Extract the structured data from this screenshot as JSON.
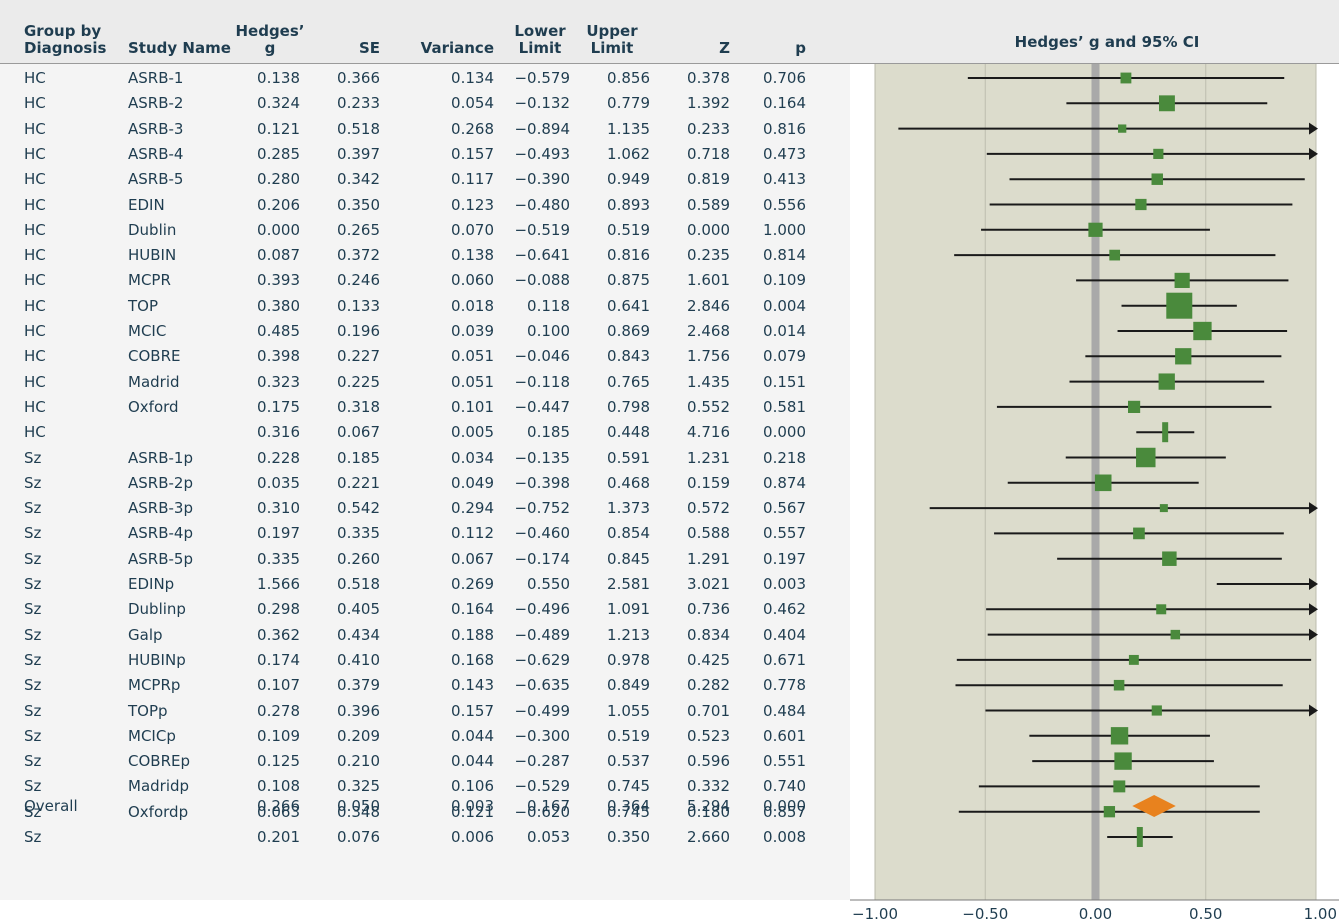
{
  "headers": {
    "group": [
      "Group by",
      "Diagnosis"
    ],
    "study": [
      "Study Name"
    ],
    "g": [
      "Hedges’",
      "g"
    ],
    "se": [
      "SE"
    ],
    "variance": [
      "Variance"
    ],
    "lower": [
      "Lower",
      "Limit"
    ],
    "upper": [
      "Upper",
      "Limit"
    ],
    "z": [
      "Z"
    ],
    "p": [
      "p"
    ]
  },
  "plot_title": "Hedges’ g and 95% CI",
  "rows": [
    {
      "group": "HC",
      "study": "ASRB-1",
      "g": "0.138",
      "se": "0.366",
      "variance": "0.134",
      "lower": "−0.579",
      "upper": "0.856",
      "z": "0.378",
      "p": "0.706"
    },
    {
      "group": "HC",
      "study": "ASRB-2",
      "g": "0.324",
      "se": "0.233",
      "variance": "0.054",
      "lower": "−0.132",
      "upper": "0.779",
      "z": "1.392",
      "p": "0.164"
    },
    {
      "group": "HC",
      "study": "ASRB-3",
      "g": "0.121",
      "se": "0.518",
      "variance": "0.268",
      "lower": "−0.894",
      "upper": "1.135",
      "z": "0.233",
      "p": "0.816"
    },
    {
      "group": "HC",
      "study": "ASRB-4",
      "g": "0.285",
      "se": "0.397",
      "variance": "0.157",
      "lower": "−0.493",
      "upper": "1.062",
      "z": "0.718",
      "p": "0.473"
    },
    {
      "group": "HC",
      "study": "ASRB-5",
      "g": "0.280",
      "se": "0.342",
      "variance": "0.117",
      "lower": "−0.390",
      "upper": "0.949",
      "z": "0.819",
      "p": "0.413"
    },
    {
      "group": "HC",
      "study": "EDIN",
      "g": "0.206",
      "se": "0.350",
      "variance": "0.123",
      "lower": "−0.480",
      "upper": "0.893",
      "z": "0.589",
      "p": "0.556"
    },
    {
      "group": "HC",
      "study": "Dublin",
      "g": "0.000",
      "se": "0.265",
      "variance": "0.070",
      "lower": "−0.519",
      "upper": "0.519",
      "z": "0.000",
      "p": "1.000"
    },
    {
      "group": "HC",
      "study": "HUBIN",
      "g": "0.087",
      "se": "0.372",
      "variance": "0.138",
      "lower": "−0.641",
      "upper": "0.816",
      "z": "0.235",
      "p": "0.814"
    },
    {
      "group": "HC",
      "study": "MCPR",
      "g": "0.393",
      "se": "0.246",
      "variance": "0.060",
      "lower": "−0.088",
      "upper": "0.875",
      "z": "1.601",
      "p": "0.109"
    },
    {
      "group": "HC",
      "study": "TOP",
      "g": "0.380",
      "se": "0.133",
      "variance": "0.018",
      "lower": "0.118",
      "upper": "0.641",
      "z": "2.846",
      "p": "0.004"
    },
    {
      "group": "HC",
      "study": "MCIC",
      "g": "0.485",
      "se": "0.196",
      "variance": "0.039",
      "lower": "0.100",
      "upper": "0.869",
      "z": "2.468",
      "p": "0.014"
    },
    {
      "group": "HC",
      "study": "COBRE",
      "g": "0.398",
      "se": "0.227",
      "variance": "0.051",
      "lower": "−0.046",
      "upper": "0.843",
      "z": "1.756",
      "p": "0.079"
    },
    {
      "group": "HC",
      "study": "Madrid",
      "g": "0.323",
      "se": "0.225",
      "variance": "0.051",
      "lower": "−0.118",
      "upper": "0.765",
      "z": "1.435",
      "p": "0.151"
    },
    {
      "group": "HC",
      "study": "Oxford",
      "g": "0.175",
      "se": "0.318",
      "variance": "0.101",
      "lower": "−0.447",
      "upper": "0.798",
      "z": "0.552",
      "p": "0.581"
    },
    {
      "group": "HC",
      "study": "",
      "g": "0.316",
      "se": "0.067",
      "variance": "0.005",
      "lower": "0.185",
      "upper": "0.448",
      "z": "4.716",
      "p": "0.000"
    },
    {
      "group": "Sz",
      "study": "ASRB-1p",
      "g": "0.228",
      "se": "0.185",
      "variance": "0.034",
      "lower": "−0.135",
      "upper": "0.591",
      "z": "1.231",
      "p": "0.218"
    },
    {
      "group": "Sz",
      "study": "ASRB-2p",
      "g": "0.035",
      "se": "0.221",
      "variance": "0.049",
      "lower": "−0.398",
      "upper": "0.468",
      "z": "0.159",
      "p": "0.874"
    },
    {
      "group": "Sz",
      "study": "ASRB-3p",
      "g": "0.310",
      "se": "0.542",
      "variance": "0.294",
      "lower": "−0.752",
      "upper": "1.373",
      "z": "0.572",
      "p": "0.567"
    },
    {
      "group": "Sz",
      "study": "ASRB-4p",
      "g": "0.197",
      "se": "0.335",
      "variance": "0.112",
      "lower": "−0.460",
      "upper": "0.854",
      "z": "0.588",
      "p": "0.557"
    },
    {
      "group": "Sz",
      "study": "ASRB-5p",
      "g": "0.335",
      "se": "0.260",
      "variance": "0.067",
      "lower": "−0.174",
      "upper": "0.845",
      "z": "1.291",
      "p": "0.197"
    },
    {
      "group": "Sz",
      "study": "EDINp",
      "g": "1.566",
      "se": "0.518",
      "variance": "0.269",
      "lower": "0.550",
      "upper": "2.581",
      "z": "3.021",
      "p": "0.003"
    },
    {
      "group": "Sz",
      "study": "Dublinp",
      "g": "0.298",
      "se": "0.405",
      "variance": "0.164",
      "lower": "−0.496",
      "upper": "1.091",
      "z": "0.736",
      "p": "0.462"
    },
    {
      "group": "Sz",
      "study": "Galp",
      "g": "0.362",
      "se": "0.434",
      "variance": "0.188",
      "lower": "−0.489",
      "upper": "1.213",
      "z": "0.834",
      "p": "0.404"
    },
    {
      "group": "Sz",
      "study": "HUBINp",
      "g": "0.174",
      "se": "0.410",
      "variance": "0.168",
      "lower": "−0.629",
      "upper": "0.978",
      "z": "0.425",
      "p": "0.671"
    },
    {
      "group": "Sz",
      "study": "MCPRp",
      "g": "0.107",
      "se": "0.379",
      "variance": "0.143",
      "lower": "−0.635",
      "upper": "0.849",
      "z": "0.282",
      "p": "0.778"
    },
    {
      "group": "Sz",
      "study": "TOPp",
      "g": "0.278",
      "se": "0.396",
      "variance": "0.157",
      "lower": "−0.499",
      "upper": "1.055",
      "z": "0.701",
      "p": "0.484"
    },
    {
      "group": "Sz",
      "study": "MCICp",
      "g": "0.109",
      "se": "0.209",
      "variance": "0.044",
      "lower": "−0.300",
      "upper": "0.519",
      "z": "0.523",
      "p": "0.601"
    },
    {
      "group": "Sz",
      "study": "COBREp",
      "g": "0.125",
      "se": "0.210",
      "variance": "0.044",
      "lower": "−0.287",
      "upper": "0.537",
      "z": "0.596",
      "p": "0.551"
    },
    {
      "group": "Sz",
      "study": "Madridp",
      "g": "0.108",
      "se": "0.325",
      "variance": "0.106",
      "lower": "−0.529",
      "upper": "0.745",
      "z": "0.332",
      "p": "0.740"
    },
    {
      "group": "Sz",
      "study": "Oxfordp",
      "g": "0.063",
      "se": "0.348",
      "variance": "0.121",
      "lower": "−0.620",
      "upper": "0.745",
      "z": "0.180",
      "p": "0.857"
    },
    {
      "group": "Sz",
      "study": "",
      "g": "0.201",
      "se": "0.076",
      "variance": "0.006",
      "lower": "0.053",
      "upper": "0.350",
      "z": "2.660",
      "p": "0.008"
    },
    {
      "group": "Overall",
      "study": "",
      "g": "0.266",
      "se": "0.050",
      "variance": "0.003",
      "lower": "0.167",
      "upper": "0.364",
      "z": "5.294",
      "p": "0.000"
    }
  ],
  "colors": {
    "marker": "#4a8a3c",
    "summary_diamond": "#e8821e",
    "plot_background": "#dcdccc",
    "zero_line": "#a9a9a9",
    "text": "#1f3d50"
  },
  "chart_data": {
    "type": "forest",
    "title": "Hedges’ g and 95% CI",
    "xlim": [
      -1.0,
      1.0
    ],
    "x_ticks": [
      "−1.00",
      "−0.50",
      "0.00",
      "0.50",
      "1.00"
    ],
    "x_tick_values": [
      -1.0,
      -0.5,
      0.0,
      0.5,
      1.0
    ],
    "grid": true,
    "series": [
      {
        "label": "HC ASRB-1",
        "g": 0.138,
        "lower": -0.579,
        "upper": 0.856,
        "weight": 0.134,
        "kind": "study"
      },
      {
        "label": "HC ASRB-2",
        "g": 0.324,
        "lower": -0.132,
        "upper": 0.779,
        "weight": 0.054,
        "kind": "study"
      },
      {
        "label": "HC ASRB-3",
        "g": 0.121,
        "lower": -0.894,
        "upper": 1.135,
        "weight": 0.268,
        "kind": "study"
      },
      {
        "label": "HC ASRB-4",
        "g": 0.285,
        "lower": -0.493,
        "upper": 1.062,
        "weight": 0.157,
        "kind": "study"
      },
      {
        "label": "HC ASRB-5",
        "g": 0.28,
        "lower": -0.39,
        "upper": 0.949,
        "weight": 0.117,
        "kind": "study"
      },
      {
        "label": "HC EDIN",
        "g": 0.206,
        "lower": -0.48,
        "upper": 0.893,
        "weight": 0.123,
        "kind": "study"
      },
      {
        "label": "HC Dublin",
        "g": 0.0,
        "lower": -0.519,
        "upper": 0.519,
        "weight": 0.07,
        "kind": "study"
      },
      {
        "label": "HC HUBIN",
        "g": 0.087,
        "lower": -0.641,
        "upper": 0.816,
        "weight": 0.138,
        "kind": "study"
      },
      {
        "label": "HC MCPR",
        "g": 0.393,
        "lower": -0.088,
        "upper": 0.875,
        "weight": 0.06,
        "kind": "study"
      },
      {
        "label": "HC TOP",
        "g": 0.38,
        "lower": 0.118,
        "upper": 0.641,
        "weight": 0.018,
        "kind": "study"
      },
      {
        "label": "HC MCIC",
        "g": 0.485,
        "lower": 0.1,
        "upper": 0.869,
        "weight": 0.039,
        "kind": "study"
      },
      {
        "label": "HC COBRE",
        "g": 0.398,
        "lower": -0.046,
        "upper": 0.843,
        "weight": 0.051,
        "kind": "study"
      },
      {
        "label": "HC Madrid",
        "g": 0.323,
        "lower": -0.118,
        "upper": 0.765,
        "weight": 0.051,
        "kind": "study"
      },
      {
        "label": "HC Oxford",
        "g": 0.175,
        "lower": -0.447,
        "upper": 0.798,
        "weight": 0.101,
        "kind": "study"
      },
      {
        "label": "HC",
        "g": 0.316,
        "lower": 0.185,
        "upper": 0.448,
        "weight": 0.005,
        "kind": "subtotal"
      },
      {
        "label": "Sz ASRB-1p",
        "g": 0.228,
        "lower": -0.135,
        "upper": 0.591,
        "weight": 0.034,
        "kind": "study"
      },
      {
        "label": "Sz ASRB-2p",
        "g": 0.035,
        "lower": -0.398,
        "upper": 0.468,
        "weight": 0.049,
        "kind": "study"
      },
      {
        "label": "Sz ASRB-3p",
        "g": 0.31,
        "lower": -0.752,
        "upper": 1.373,
        "weight": 0.294,
        "kind": "study"
      },
      {
        "label": "Sz ASRB-4p",
        "g": 0.197,
        "lower": -0.46,
        "upper": 0.854,
        "weight": 0.112,
        "kind": "study"
      },
      {
        "label": "Sz ASRB-5p",
        "g": 0.335,
        "lower": -0.174,
        "upper": 0.845,
        "weight": 0.067,
        "kind": "study"
      },
      {
        "label": "Sz EDINp",
        "g": 1.566,
        "lower": 0.55,
        "upper": 2.581,
        "weight": 0.269,
        "kind": "study"
      },
      {
        "label": "Sz Dublinp",
        "g": 0.298,
        "lower": -0.496,
        "upper": 1.091,
        "weight": 0.164,
        "kind": "study"
      },
      {
        "label": "Sz Galp",
        "g": 0.362,
        "lower": -0.489,
        "upper": 1.213,
        "weight": 0.188,
        "kind": "study"
      },
      {
        "label": "Sz HUBINp",
        "g": 0.174,
        "lower": -0.629,
        "upper": 0.978,
        "weight": 0.168,
        "kind": "study"
      },
      {
        "label": "Sz MCPRp",
        "g": 0.107,
        "lower": -0.635,
        "upper": 0.849,
        "weight": 0.143,
        "kind": "study"
      },
      {
        "label": "Sz TOPp",
        "g": 0.278,
        "lower": -0.499,
        "upper": 1.055,
        "weight": 0.157,
        "kind": "study"
      },
      {
        "label": "Sz MCICp",
        "g": 0.109,
        "lower": -0.3,
        "upper": 0.519,
        "weight": 0.044,
        "kind": "study"
      },
      {
        "label": "Sz COBREp",
        "g": 0.125,
        "lower": -0.287,
        "upper": 0.537,
        "weight": 0.044,
        "kind": "study"
      },
      {
        "label": "Sz Madridp",
        "g": 0.108,
        "lower": -0.529,
        "upper": 0.745,
        "weight": 0.106,
        "kind": "study"
      },
      {
        "label": "Sz Oxfordp",
        "g": 0.063,
        "lower": -0.62,
        "upper": 0.745,
        "weight": 0.121,
        "kind": "study"
      },
      {
        "label": "Sz",
        "g": 0.201,
        "lower": 0.053,
        "upper": 0.35,
        "weight": 0.006,
        "kind": "subtotal"
      },
      {
        "label": "Overall",
        "g": 0.266,
        "lower": 0.167,
        "upper": 0.364,
        "weight": 0.003,
        "kind": "overall"
      }
    ]
  }
}
